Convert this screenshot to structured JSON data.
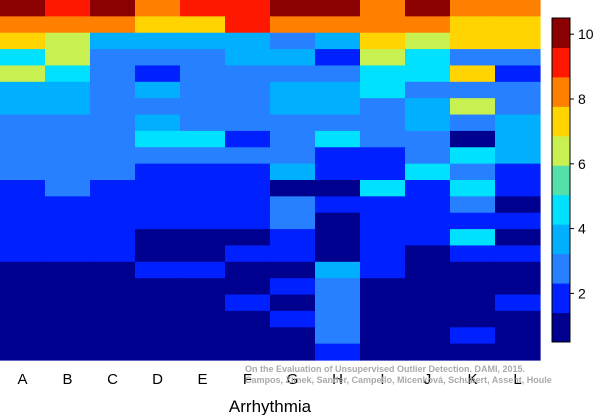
{
  "chart_data": {
    "type": "heatmap",
    "title": "",
    "xlabel": "Arrhythmia",
    "ylabel": "",
    "x_categories": [
      "A",
      "B",
      "C",
      "D",
      "E",
      "F",
      "G",
      "H",
      "I",
      "J",
      "K",
      "L"
    ],
    "row_count": 22,
    "row_order": "rows listed top to bottom; each row lists values for columns A..L",
    "values": [
      [
        10,
        9,
        10,
        8,
        9,
        9,
        10,
        10,
        8,
        10,
        8,
        8
      ],
      [
        8,
        8,
        8,
        7,
        7,
        9,
        8,
        8,
        8,
        8,
        7,
        7
      ],
      [
        7,
        6,
        4,
        4,
        4,
        4,
        3,
        4,
        7,
        6,
        7,
        7
      ],
      [
        5,
        6,
        3,
        3,
        3,
        4,
        4,
        2,
        6,
        5,
        3,
        3
      ],
      [
        6,
        5,
        3,
        2,
        3,
        3,
        3,
        3,
        5,
        5,
        7,
        2
      ],
      [
        4,
        4,
        3,
        4,
        3,
        3,
        4,
        4,
        5,
        3,
        3,
        3
      ],
      [
        4,
        4,
        3,
        3,
        3,
        3,
        4,
        4,
        3,
        4,
        6,
        3
      ],
      [
        3,
        3,
        3,
        4,
        3,
        3,
        3,
        3,
        3,
        4,
        3,
        4
      ],
      [
        3,
        3,
        3,
        5,
        5,
        2,
        3,
        5,
        3,
        3,
        1,
        4
      ],
      [
        3,
        3,
        3,
        3,
        3,
        3,
        3,
        2,
        2,
        3,
        5,
        4
      ],
      [
        3,
        3,
        3,
        2,
        2,
        2,
        4,
        2,
        2,
        5,
        3,
        2
      ],
      [
        2,
        3,
        2,
        2,
        2,
        2,
        1,
        1,
        5,
        2,
        5,
        2
      ],
      [
        2,
        2,
        2,
        2,
        2,
        2,
        3,
        2,
        2,
        2,
        3,
        1
      ],
      [
        2,
        2,
        2,
        2,
        2,
        2,
        3,
        1,
        2,
        2,
        2,
        2
      ],
      [
        2,
        2,
        2,
        1,
        1,
        1,
        2,
        1,
        2,
        2,
        5,
        1
      ],
      [
        2,
        2,
        2,
        1,
        1,
        2,
        2,
        1,
        2,
        1,
        2,
        2
      ],
      [
        1,
        1,
        1,
        2,
        2,
        1,
        1,
        4,
        2,
        1,
        1,
        1
      ],
      [
        1,
        1,
        1,
        1,
        1,
        1,
        2,
        3,
        1,
        1,
        1,
        1
      ],
      [
        1,
        1,
        1,
        1,
        1,
        2,
        1,
        3,
        1,
        1,
        1,
        2
      ],
      [
        1,
        1,
        1,
        1,
        1,
        1,
        2,
        3,
        1,
        1,
        1,
        1
      ],
      [
        1,
        1,
        1,
        1,
        1,
        1,
        1,
        3,
        1,
        1,
        2,
        1
      ],
      [
        1,
        1,
        1,
        1,
        1,
        1,
        1,
        2,
        1,
        1,
        1,
        1
      ]
    ],
    "colorbar": {
      "min": 0.5,
      "max": 10.5,
      "ticks": [
        2,
        4,
        6,
        8,
        10
      ],
      "colors": [
        "#00008f",
        "#0020ff",
        "#2680ff",
        "#00b0ff",
        "#00e0ff",
        "#55e0aa",
        "#c8f050",
        "#ffd400",
        "#ff8000",
        "#ff1800",
        "#8b0000"
      ]
    },
    "annotation": [
      "On the Evaluation of Unsupervised Outlier Detection. DAMI, 2015.",
      "Campos, Zimek, Sander, Campello, Micenková, Schubert, Assent, Houle"
    ]
  }
}
